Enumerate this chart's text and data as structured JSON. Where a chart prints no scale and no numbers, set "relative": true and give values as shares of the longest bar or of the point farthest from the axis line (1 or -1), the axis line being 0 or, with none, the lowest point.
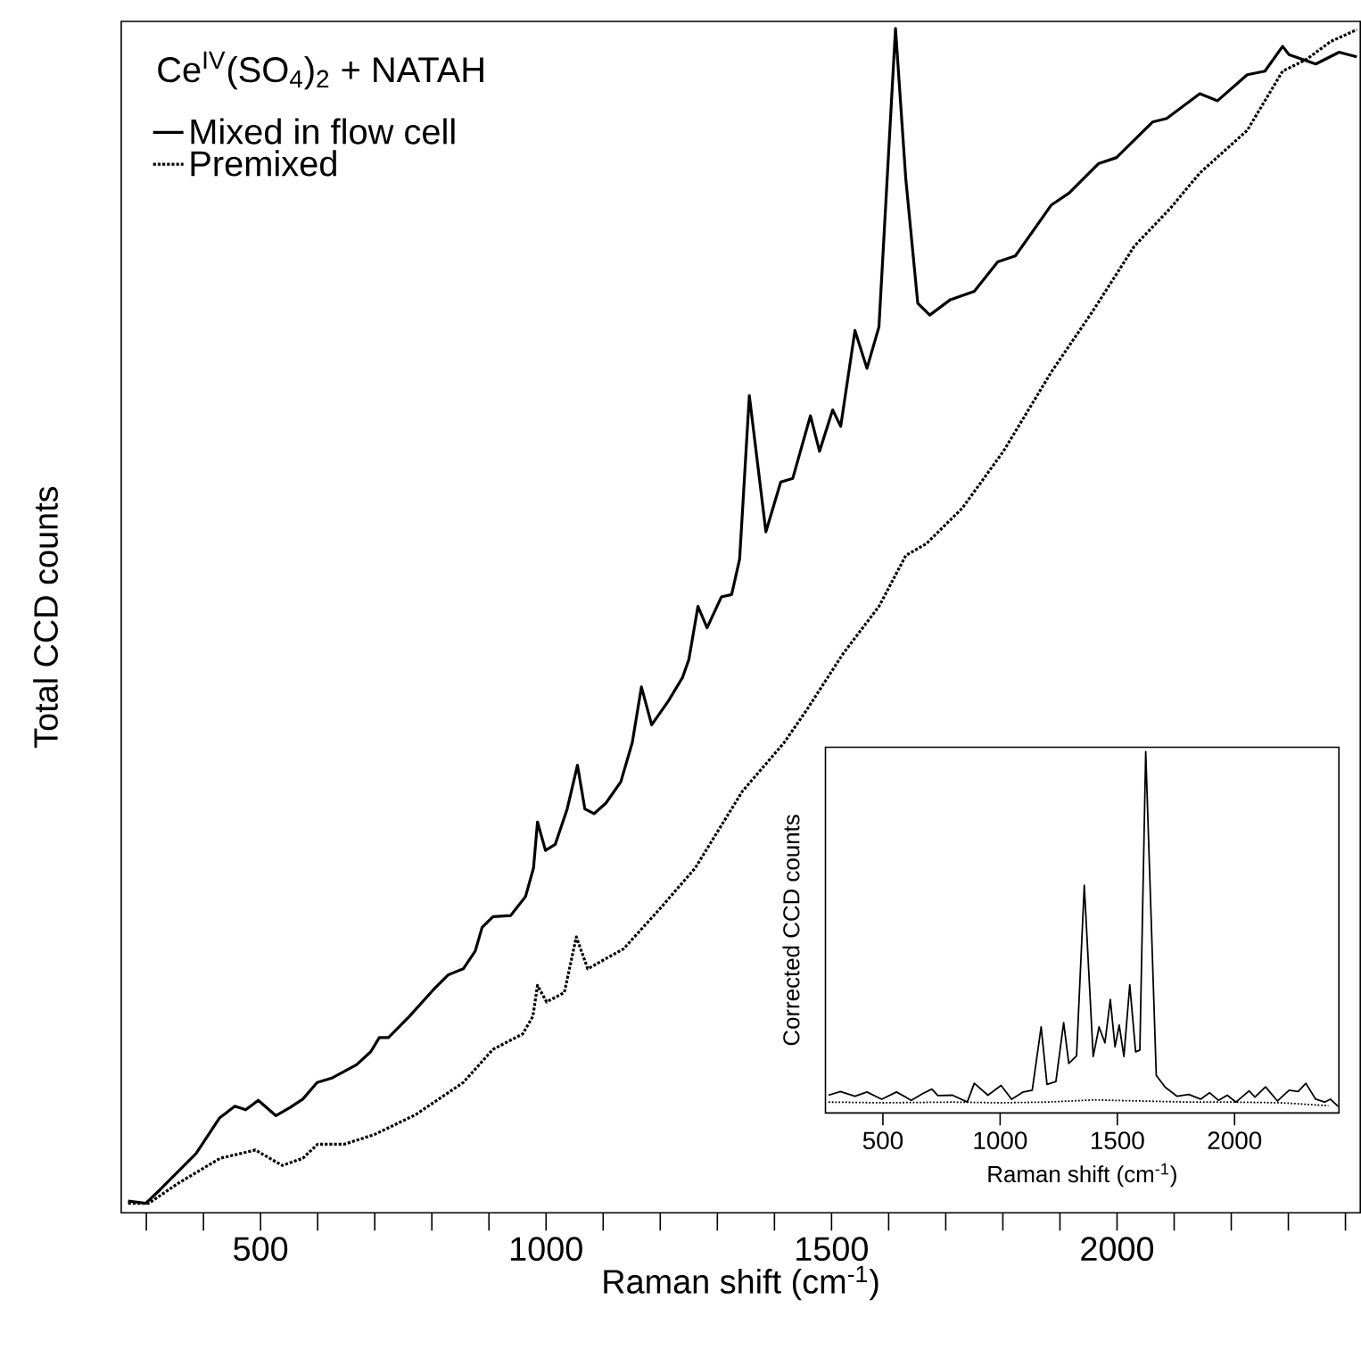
{
  "chart_data": [
    {
      "type": "line",
      "relative": true,
      "legend_title": "Ce$^{IV}$(SO$_{4}$)$_{2}$ + NATAH",
      "xlabel": "Raman shift (cm$^{-1}$)",
      "ylabel": "Total CCD counts",
      "xlim": [
        256,
        2426
      ],
      "xticks": [
        {
          "value": 300,
          "label": null
        },
        {
          "value": 400,
          "label": null
        },
        500,
        {
          "value": 600,
          "label": null
        },
        {
          "value": 700,
          "label": null
        },
        {
          "value": 800,
          "label": null
        },
        {
          "value": 900,
          "label": null
        },
        1000,
        {
          "value": 1100,
          "label": null
        },
        {
          "value": 1200,
          "label": null
        },
        {
          "value": 1300,
          "label": null
        },
        {
          "value": 1400,
          "label": null
        },
        1500,
        {
          "value": 1600,
          "label": null
        },
        {
          "value": 1700,
          "label": null
        },
        {
          "value": 1800,
          "label": null
        },
        {
          "value": 1900,
          "label": null
        },
        2000,
        {
          "value": 2100,
          "label": null
        },
        {
          "value": 2200,
          "label": null
        },
        {
          "value": 2300,
          "label": null
        },
        {
          "value": 2400,
          "label": null
        }
      ],
      "legend": "top left",
      "grid": false,
      "series": [
        {
          "name": "Mixed in flow cell",
          "color": "#000000",
          "line_style": "solid",
          "x": [
            268,
            299,
            325,
            387,
            428,
            455,
            474,
            496,
            527,
            552,
            574,
            599,
            626,
            668,
            693,
            708,
            724,
            761,
            802,
            829,
            855,
            876,
            888,
            907,
            938,
            964,
            978,
            985,
            999,
            1016,
            1037,
            1055,
            1068,
            1084,
            1105,
            1131,
            1151,
            1167,
            1185,
            1214,
            1239,
            1250,
            1266,
            1282,
            1307,
            1325,
            1339,
            1356,
            1385,
            1411,
            1432,
            1463,
            1479,
            1502,
            1516,
            1541,
            1562,
            1583,
            1612,
            1630,
            1651,
            1672,
            1708,
            1750,
            1791,
            1822,
            1885,
            1916,
            1968,
            1999,
            2062,
            2087,
            2145,
            2176,
            2228,
            2259,
            2290,
            2301,
            2348,
            2389,
            2420
          ],
          "values": [
            0.01,
            0.008,
            0.02,
            0.05,
            0.08,
            0.09,
            0.087,
            0.095,
            0.082,
            0.089,
            0.096,
            0.11,
            0.114,
            0.125,
            0.136,
            0.148,
            0.148,
            0.166,
            0.188,
            0.201,
            0.206,
            0.221,
            0.241,
            0.25,
            0.251,
            0.267,
            0.291,
            0.33,
            0.306,
            0.311,
            0.341,
            0.378,
            0.341,
            0.337,
            0.346,
            0.364,
            0.397,
            0.444,
            0.412,
            0.432,
            0.452,
            0.467,
            0.512,
            0.494,
            0.52,
            0.522,
            0.552,
            0.69,
            0.575,
            0.617,
            0.62,
            0.673,
            0.643,
            0.678,
            0.664,
            0.745,
            0.713,
            0.748,
            1.0,
            0.873,
            0.768,
            0.758,
            0.771,
            0.778,
            0.803,
            0.808,
            0.851,
            0.861,
            0.886,
            0.891,
            0.921,
            0.924,
            0.945,
            0.939,
            0.961,
            0.964,
            0.985,
            0.978,
            0.97,
            0.98,
            0.976
          ]
        },
        {
          "name": "Premixed",
          "color": "#000000",
          "line_style": "dotted",
          "x": [
            268,
            304,
            356,
            429,
            491,
            538,
            574,
            600,
            647,
            699,
            772,
            855,
            907,
            959,
            977,
            985,
            1001,
            1032,
            1053,
            1073,
            1136,
            1198,
            1261,
            1344,
            1417,
            1457,
            1520,
            1583,
            1630,
            1666,
            1729,
            1801,
            1885,
            1957,
            2030,
            2093,
            2145,
            2228,
            2290,
            2332,
            2374,
            2420
          ],
          "values": [
            0.008,
            0.008,
            0.025,
            0.046,
            0.053,
            0.04,
            0.046,
            0.058,
            0.058,
            0.066,
            0.083,
            0.11,
            0.138,
            0.151,
            0.166,
            0.192,
            0.178,
            0.186,
            0.233,
            0.206,
            0.223,
            0.256,
            0.291,
            0.356,
            0.397,
            0.425,
            0.472,
            0.512,
            0.555,
            0.565,
            0.595,
            0.643,
            0.71,
            0.761,
            0.816,
            0.848,
            0.878,
            0.914,
            0.964,
            0.974,
            0.989,
            0.999
          ]
        }
      ]
    },
    {
      "type": "line",
      "relative": true,
      "xlabel": "Raman shift (cm$^{-1}$)",
      "ylabel": "Corrected CCD counts",
      "xlim": [
        255,
        2445
      ],
      "xticks": [
        500,
        1000,
        1500,
        2000
      ],
      "grid": false,
      "legend": false,
      "series": [
        {
          "color": "#000000",
          "line_style": "solid",
          "x": [
            268,
            319,
            381,
            432,
            495,
            558,
            621,
            671,
            709,
            734,
            797,
            860,
            890,
            948,
            1004,
            1049,
            1099,
            1137,
            1175,
            1200,
            1238,
            1271,
            1293,
            1326,
            1359,
            1397,
            1422,
            1447,
            1470,
            1490,
            1508,
            1528,
            1553,
            1578,
            1596,
            1621,
            1666,
            1704,
            1755,
            1805,
            1855,
            1893,
            1931,
            1969,
            2006,
            2062,
            2087,
            2132,
            2183,
            2233,
            2271,
            2304,
            2346,
            2384,
            2409,
            2442
          ],
          "values": [
            0.049,
            0.059,
            0.046,
            0.058,
            0.038,
            0.058,
            0.035,
            0.054,
            0.066,
            0.048,
            0.049,
            0.03,
            0.082,
            0.049,
            0.076,
            0.038,
            0.058,
            0.063,
            0.238,
            0.079,
            0.087,
            0.25,
            0.137,
            0.158,
            0.63,
            0.156,
            0.238,
            0.194,
            0.314,
            0.183,
            0.243,
            0.156,
            0.355,
            0.169,
            0.174,
            1.0,
            0.104,
            0.071,
            0.046,
            0.051,
            0.038,
            0.056,
            0.035,
            0.049,
            0.03,
            0.061,
            0.044,
            0.072,
            0.033,
            0.063,
            0.059,
            0.082,
            0.038,
            0.03,
            0.038,
            0.018
          ]
        },
        {
          "color": "#000000",
          "line_style": "dotted",
          "x": [
            268,
            500,
            800,
            1000,
            1200,
            1400,
            1600,
            1800,
            2000,
            2200,
            2400
          ],
          "values": [
            0.03,
            0.028,
            0.03,
            0.028,
            0.03,
            0.036,
            0.033,
            0.03,
            0.03,
            0.028,
            0.02
          ]
        }
      ]
    }
  ]
}
